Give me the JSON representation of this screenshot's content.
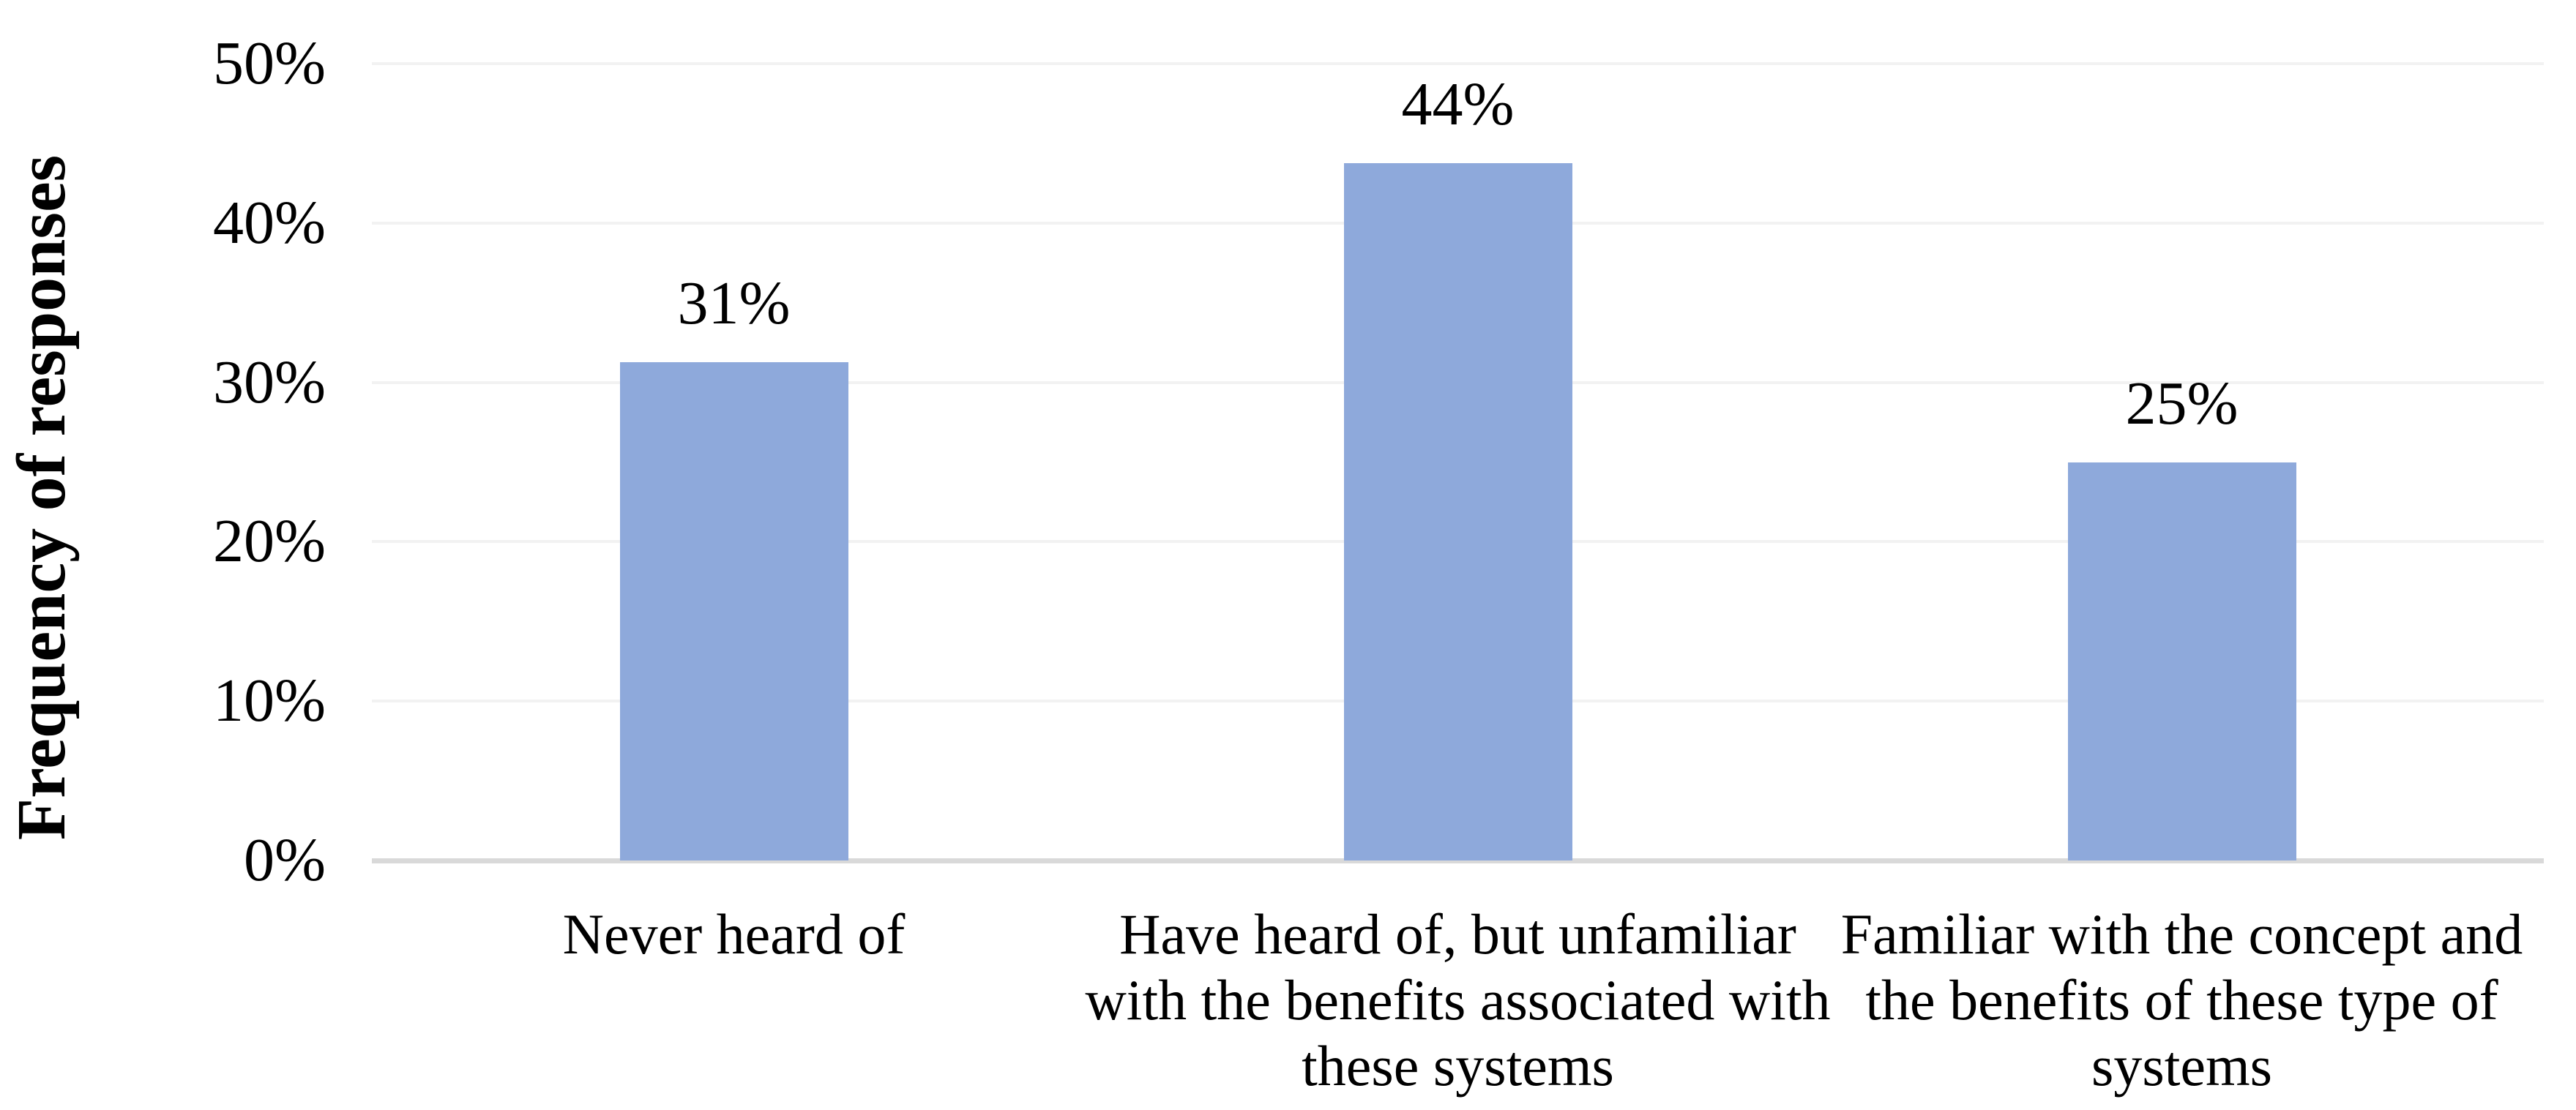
{
  "chart_data": {
    "type": "bar",
    "title": "",
    "ylabel": "Frequency of responses",
    "xlabel": "",
    "categories": [
      "Never heard of",
      "Have heard of, but unfamiliar\nwith the benefits associated with\nthese systems",
      "Familiar with the concept and\nthe benefits of these type of\nsystems"
    ],
    "values": [
      31,
      44,
      25
    ],
    "values_precise": [
      31.25,
      43.75,
      25
    ],
    "data_labels": [
      "31%",
      "44%",
      "25%"
    ],
    "yticks": [
      {
        "value": 0,
        "label": "0%"
      },
      {
        "value": 10,
        "label": "10%"
      },
      {
        "value": 20,
        "label": "20%"
      },
      {
        "value": 30,
        "label": "30%"
      },
      {
        "value": 40,
        "label": "40%"
      },
      {
        "value": 50,
        "label": "50%"
      }
    ],
    "ylim": [
      0,
      50
    ],
    "grid": "horizontal",
    "legend": "none",
    "bar_color": "#8EA9DB",
    "gridline_color": "#F2F2F2",
    "axis_line_color": "#D9D9D9",
    "text_color": "#000000"
  }
}
